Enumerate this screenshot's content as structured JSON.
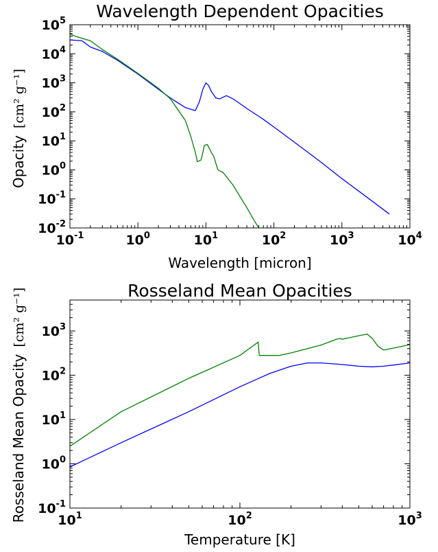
{
  "chart_data": [
    {
      "type": "line",
      "title": "Wavelength Dependent Opacities",
      "xlabel": "Wavelength [micron]",
      "ylabel_text": "Opacity",
      "ylabel_unit": "[cm² g⁻¹]",
      "xscale": "log",
      "yscale": "log",
      "xlim": [
        0.1,
        10000
      ],
      "ylim": [
        0.01,
        100000
      ],
      "xticks": [
        {
          "base": "10",
          "exp": "-1"
        },
        {
          "base": "10",
          "exp": "0"
        },
        {
          "base": "10",
          "exp": "1"
        },
        {
          "base": "10",
          "exp": "2"
        },
        {
          "base": "10",
          "exp": "3"
        },
        {
          "base": "10",
          "exp": "4"
        }
      ],
      "yticks": [
        {
          "base": "10",
          "exp": "-2"
        },
        {
          "base": "10",
          "exp": "-1"
        },
        {
          "base": "10",
          "exp": "0"
        },
        {
          "base": "10",
          "exp": "1"
        },
        {
          "base": "10",
          "exp": "2"
        },
        {
          "base": "10",
          "exp": "3"
        },
        {
          "base": "10",
          "exp": "4"
        },
        {
          "base": "10",
          "exp": "5"
        }
      ],
      "series": [
        {
          "color": "#0000ff",
          "points": [
            [
              0.1,
              30000
            ],
            [
              0.15,
              28000
            ],
            [
              0.2,
              17000
            ],
            [
              0.3,
              12000
            ],
            [
              0.5,
              6000
            ],
            [
              1,
              2000
            ],
            [
              2,
              600
            ],
            [
              3,
              300
            ],
            [
              5,
              140
            ],
            [
              7,
              110
            ],
            [
              8,
              220
            ],
            [
              9,
              600
            ],
            [
              10,
              1000
            ],
            [
              11,
              800
            ],
            [
              12,
              500
            ],
            [
              14,
              300
            ],
            [
              16,
              280
            ],
            [
              20,
              360
            ],
            [
              25,
              280
            ],
            [
              40,
              130
            ],
            [
              70,
              55
            ],
            [
              100,
              30
            ],
            [
              200,
              9
            ],
            [
              500,
              1.8
            ],
            [
              1000,
              0.5
            ],
            [
              2000,
              0.15
            ],
            [
              5000,
              0.03
            ]
          ]
        },
        {
          "color": "#008000",
          "points": [
            [
              0.1,
              48000
            ],
            [
              0.12,
              40000
            ],
            [
              0.15,
              34000
            ],
            [
              0.2,
              28000
            ],
            [
              0.3,
              14000
            ],
            [
              0.5,
              6500
            ],
            [
              1,
              2100
            ],
            [
              2,
              650
            ],
            [
              3,
              280
            ],
            [
              5,
              50
            ],
            [
              6,
              14
            ],
            [
              7,
              4
            ],
            [
              7.5,
              1.9
            ],
            [
              8.5,
              2.2
            ],
            [
              9.5,
              7
            ],
            [
              10.5,
              7.5
            ],
            [
              12,
              4
            ],
            [
              13,
              3
            ],
            [
              15,
              1
            ],
            [
              18,
              0.8
            ],
            [
              25,
              0.3
            ],
            [
              30,
              0.15
            ],
            [
              40,
              0.05
            ],
            [
              50,
              0.02
            ],
            [
              60,
              0.01
            ]
          ]
        }
      ]
    },
    {
      "type": "line",
      "title": "Rosseland Mean Opacities",
      "xlabel": "Temperature [K]",
      "ylabel_text": "Rosseland Mean Opacity",
      "ylabel_unit": "[cm² g⁻¹]",
      "xscale": "log",
      "yscale": "log",
      "xlim": [
        10,
        1000
      ],
      "ylim": [
        0.1,
        5000
      ],
      "xticks": [
        {
          "base": "10",
          "exp": "1"
        },
        {
          "base": "10",
          "exp": "2"
        },
        {
          "base": "10",
          "exp": "3"
        }
      ],
      "yticks": [
        {
          "base": "10",
          "exp": "-1"
        },
        {
          "base": "10",
          "exp": "0"
        },
        {
          "base": "10",
          "exp": "1"
        },
        {
          "base": "10",
          "exp": "2"
        },
        {
          "base": "10",
          "exp": "3"
        }
      ],
      "series": [
        {
          "color": "#0000ff",
          "points": [
            [
              10,
              0.85
            ],
            [
              20,
              3
            ],
            [
              50,
              15
            ],
            [
              100,
              55
            ],
            [
              150,
              110
            ],
            [
              200,
              160
            ],
            [
              250,
              190
            ],
            [
              300,
              190
            ],
            [
              400,
              175
            ],
            [
              500,
              160
            ],
            [
              600,
              155
            ],
            [
              700,
              160
            ],
            [
              800,
              170
            ],
            [
              1000,
              190
            ]
          ]
        },
        {
          "color": "#008000",
          "points": [
            [
              10,
              2.5
            ],
            [
              20,
              15
            ],
            [
              50,
              85
            ],
            [
              100,
              280
            ],
            [
              128,
              560
            ],
            [
              130,
              280
            ],
            [
              170,
              280
            ],
            [
              200,
              320
            ],
            [
              300,
              480
            ],
            [
              370,
              650
            ],
            [
              390,
              680
            ],
            [
              400,
              650
            ],
            [
              500,
              780
            ],
            [
              560,
              850
            ],
            [
              600,
              680
            ],
            [
              650,
              450
            ],
            [
              700,
              370
            ],
            [
              800,
              410
            ],
            [
              1000,
              490
            ]
          ]
        }
      ]
    }
  ]
}
